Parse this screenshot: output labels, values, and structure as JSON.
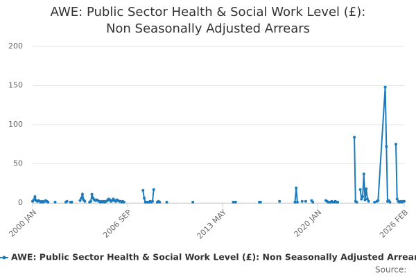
{
  "chart_data": {
    "type": "line",
    "title": "AWE: Public Sector Health & Social Work Level (£): Non Seasonally Adjusted Arrears",
    "source": "Source:",
    "x": [
      "2000 JAN",
      "2000 FEB",
      "2000 MAR",
      "2000 APR",
      "2000 MAY",
      "2000 JUN",
      "2000 JUL",
      "2000 AUG",
      "2000 SEP",
      "2000 OCT",
      "2000 NOV",
      "2000 DEC",
      "2001 JAN",
      "2001 FEB",
      "2001 MAY",
      "2001 AUG",
      "2002 JAN",
      "2002 MAY",
      "2002 JUN",
      "2002 JUL",
      "2002 SEP",
      "2002 OCT",
      "2003 FEB",
      "2003 MAY",
      "2003 JUN",
      "2003 JUL",
      "2003 AUG",
      "2003 SEP",
      "2003 NOV",
      "2004 JAN",
      "2004 FEB",
      "2004 MAR",
      "2004 APR",
      "2004 MAY",
      "2004 JUN",
      "2004 JUL",
      "2004 AUG",
      "2004 SEP",
      "2004 OCT",
      "2004 NOV",
      "2004 DEC",
      "2005 JAN",
      "2005 FEB",
      "2005 MAR",
      "2005 APR",
      "2005 MAY",
      "2005 JUN",
      "2005 JUL",
      "2005 AUG",
      "2005 SEP",
      "2005 OCT",
      "2005 NOV",
      "2005 DEC",
      "2006 JAN",
      "2006 FEB",
      "2006 MAR",
      "2006 APR",
      "2006 MAY",
      "2006 JUN",
      "2007 FEB",
      "2007 OCT",
      "2007 NOV",
      "2007 DEC",
      "2008 JAN",
      "2008 FEB",
      "2008 MAR",
      "2008 APR",
      "2008 MAY",
      "2008 JUN",
      "2008 JUL",
      "2008 SEP",
      "2008 OCT",
      "2008 NOV",
      "2008 DEC",
      "2009 JAN",
      "2009 JUN",
      "2010 MAR",
      "2011 APR",
      "2012 JUN",
      "2014 FEB",
      "2014 MAR",
      "2014 APR",
      "2015 MAR",
      "2015 DEC",
      "2016 JAN",
      "2016 JUN",
      "2017 MAY",
      "2017 DEC",
      "2018 JUN",
      "2018 JUL",
      "2018 AUG",
      "2018 OCT",
      "2018 DEC",
      "2019 JAN",
      "2019 MAR",
      "2019 MAY",
      "2019 AUG",
      "2019 SEP",
      "2020 MAR",
      "2020 AUG",
      "2020 SEP",
      "2020 OCT",
      "2020 NOV",
      "2020 DEC",
      "2021 JAN",
      "2021 FEB",
      "2021 MAR",
      "2021 APR",
      "2021 MAY",
      "2021 JUN",
      "2021 NOV",
      "2022 AUG",
      "2022 SEP",
      "2022 OCT",
      "2022 DEC",
      "2023 JAN",
      "2023 FEB",
      "2023 MAR",
      "2023 APR",
      "2023 MAY",
      "2023 JUN",
      "2023 JUL",
      "2023 AUG",
      "2023 OCT",
      "2024 JAN",
      "2024 FEB",
      "2024 MAR",
      "2024 APR",
      "2024 OCT",
      "2024 NOV",
      "2024 DEC",
      "2025 JAN",
      "2025 FEB",
      "2025 APR",
      "2025 JUL",
      "2025 AUG",
      "2025 SEP",
      "2025 OCT",
      "2025 NOV",
      "2025 DEC",
      "2026 JAN",
      "2026 FEB"
    ],
    "series": [
      {
        "name": "AWE: Public Sector Health & Social Work Level (£): Non Seasonally Adjusted Arrears",
        "color": "#1b7bbd",
        "values": [
          2,
          4,
          8,
          3,
          2,
          3,
          2,
          1,
          2,
          1,
          2,
          3,
          2,
          1,
          null,
          1,
          null,
          1,
          2,
          null,
          1,
          1,
          null,
          3,
          6,
          11,
          4,
          2,
          null,
          1,
          2,
          11,
          6,
          4,
          3,
          4,
          3,
          2,
          1,
          2,
          1,
          2,
          1,
          2,
          3,
          5,
          4,
          2,
          3,
          5,
          3,
          2,
          4,
          3,
          2,
          2,
          1,
          2,
          1,
          null,
          16,
          6,
          1,
          1,
          1,
          1,
          2,
          1,
          2,
          17,
          null,
          1,
          2,
          1,
          null,
          1,
          null,
          1,
          null,
          1,
          null,
          1,
          null,
          1,
          1,
          null,
          2,
          null,
          1,
          19,
          1,
          null,
          2,
          null,
          2,
          null,
          3,
          1,
          null,
          3,
          2,
          1,
          1,
          1,
          2,
          1,
          1,
          2,
          1,
          1,
          null,
          84,
          2,
          1,
          null,
          17,
          5,
          8,
          37,
          4,
          18,
          5,
          2,
          null,
          1,
          null,
          2,
          3,
          148,
          72,
          2,
          3,
          1,
          null,
          75,
          5,
          2,
          1,
          2,
          1,
          2,
          2
        ]
      }
    ],
    "xlim": [
      "2000 JAN",
      "2026 FEB"
    ],
    "xticks": [
      "2000 JAN",
      "2006 SEP",
      "2013 MAY",
      "2020 JAN",
      "2026 FEB"
    ],
    "ylim": [
      0,
      200
    ],
    "yticks": [
      0,
      50,
      100,
      150,
      200
    ],
    "grid": true
  }
}
